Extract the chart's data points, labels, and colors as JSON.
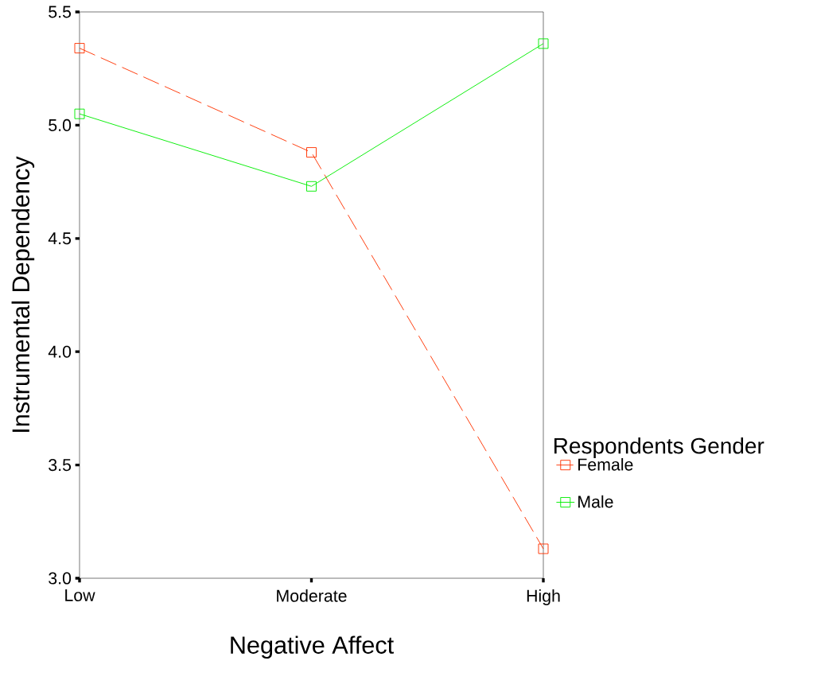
{
  "chart_data": {
    "type": "line",
    "xlabel": "Negative Affect",
    "ylabel": "Instrumental Dependency",
    "legend_title": "Respondents Gender",
    "categories": [
      "Low",
      "Moderate",
      "High"
    ],
    "series": [
      {
        "name": "Female",
        "color": "#ff3300",
        "line_style": "dashed",
        "values": [
          5.34,
          4.88,
          3.13
        ]
      },
      {
        "name": "Male",
        "color": "#00ee00",
        "line_style": "solid",
        "values": [
          5.05,
          4.73,
          5.36
        ]
      }
    ],
    "ylim": [
      3.0,
      5.5
    ],
    "yticks": [
      {
        "value": 3.0,
        "label": "3.0"
      },
      3.5,
      {
        "value": 4.0,
        "label": "4.0"
      },
      4.5,
      {
        "value": 5.0,
        "label": "5.0"
      },
      5.5
    ],
    "marker": "square",
    "legend": "right",
    "grid": false
  }
}
